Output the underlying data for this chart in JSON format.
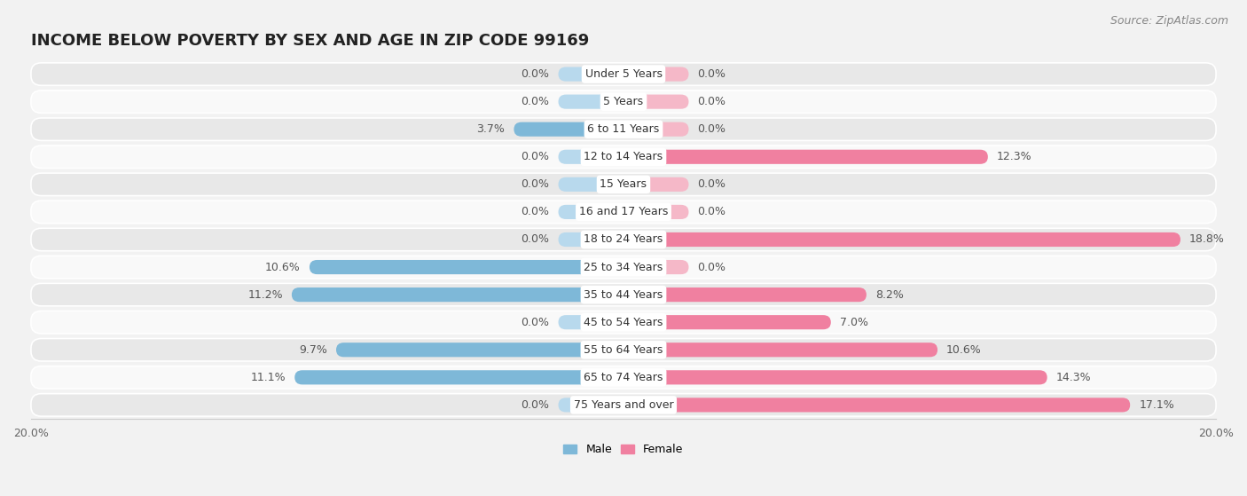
{
  "title": "INCOME BELOW POVERTY BY SEX AND AGE IN ZIP CODE 99169",
  "source": "Source: ZipAtlas.com",
  "categories": [
    "Under 5 Years",
    "5 Years",
    "6 to 11 Years",
    "12 to 14 Years",
    "15 Years",
    "16 and 17 Years",
    "18 to 24 Years",
    "25 to 34 Years",
    "35 to 44 Years",
    "45 to 54 Years",
    "55 to 64 Years",
    "65 to 74 Years",
    "75 Years and over"
  ],
  "male": [
    0.0,
    0.0,
    3.7,
    0.0,
    0.0,
    0.0,
    0.0,
    10.6,
    11.2,
    0.0,
    9.7,
    11.1,
    0.0
  ],
  "female": [
    0.0,
    0.0,
    0.0,
    12.3,
    0.0,
    0.0,
    18.8,
    0.0,
    8.2,
    7.0,
    10.6,
    14.3,
    17.1
  ],
  "male_color": "#7eb8d8",
  "male_color_light": "#b8d9ed",
  "female_color": "#f080a0",
  "female_color_light": "#f5b8c8",
  "xlim": 20.0,
  "bar_height": 0.52,
  "stub_value": 2.2,
  "bg_color": "#f2f2f2",
  "row_color_odd": "#e8e8e8",
  "row_color_even": "#f9f9f9",
  "title_fontsize": 13,
  "source_fontsize": 9,
  "label_fontsize": 9,
  "category_fontsize": 9,
  "tick_fontsize": 9
}
